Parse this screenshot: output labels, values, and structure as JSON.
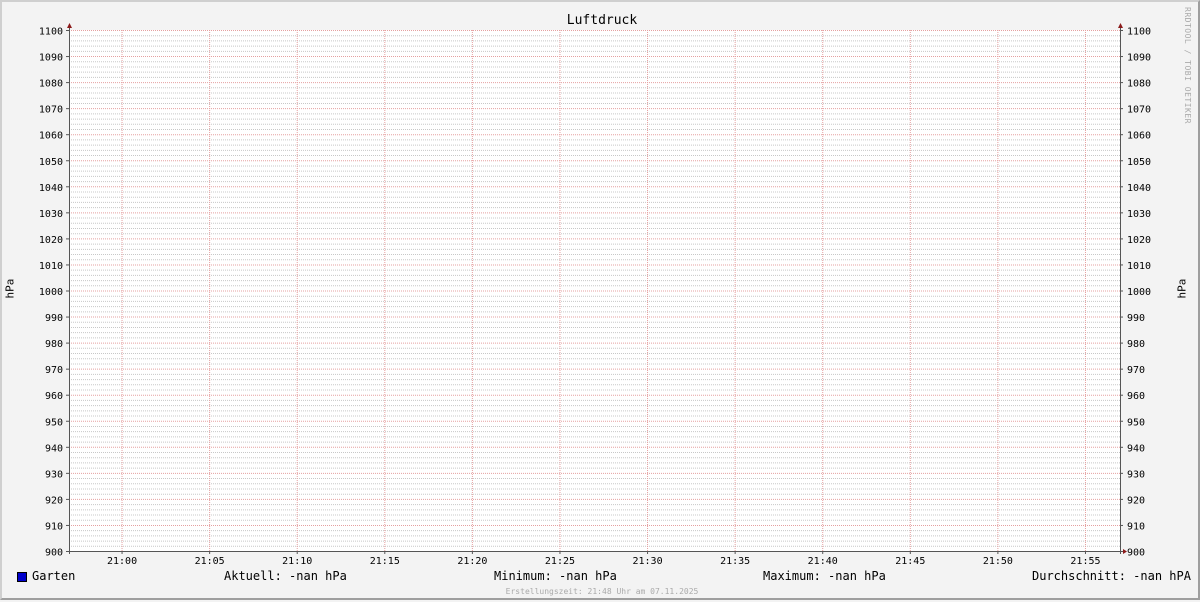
{
  "chart_data": {
    "type": "line",
    "title": "Luftdruck",
    "ylabel": "hPa",
    "ylabel_right": "hPa",
    "ylim": [
      900,
      1100
    ],
    "y_major_step": 10,
    "y_minor_step": 2,
    "y_ticks": [
      "1100",
      "1090",
      "1080",
      "1070",
      "1060",
      "1050",
      "1040",
      "1030",
      "1020",
      "1010",
      "1000",
      "990",
      "980",
      "970",
      "960",
      "950",
      "940",
      "930",
      "920",
      "910",
      "900"
    ],
    "x_range": [
      "20:57",
      "21:57"
    ],
    "x_ticks": [
      "21:00",
      "21:05",
      "21:10",
      "21:15",
      "21:20",
      "21:25",
      "21:30",
      "21:35",
      "21:40",
      "21:45",
      "21:50",
      "21:55"
    ],
    "x_major_step_min": 5,
    "x_minor_step_min": 1,
    "grid": true,
    "series": [
      {
        "name": "Garten",
        "color": "#0000cc",
        "values": []
      }
    ],
    "colors": {
      "major_grid": "#e5a0a0",
      "minor_grid": "#c8c8c8",
      "axis": "#555555",
      "arrow": "#8b1a1a",
      "background": "#ffffff",
      "canvas": "#f3f3f3"
    }
  },
  "legend": {
    "series_name": "Garten",
    "current": "Aktuell: -nan hPa",
    "minimum": "Minimum: -nan hPa",
    "maximum": "Maximum: -nan hPa",
    "average": "Durchschnitt: -nan hPA"
  },
  "watermark": "RRDTOOL / TOBI OETIKER",
  "footer": "Erstellungszeit: 21:48 Uhr am 07.11.2025"
}
